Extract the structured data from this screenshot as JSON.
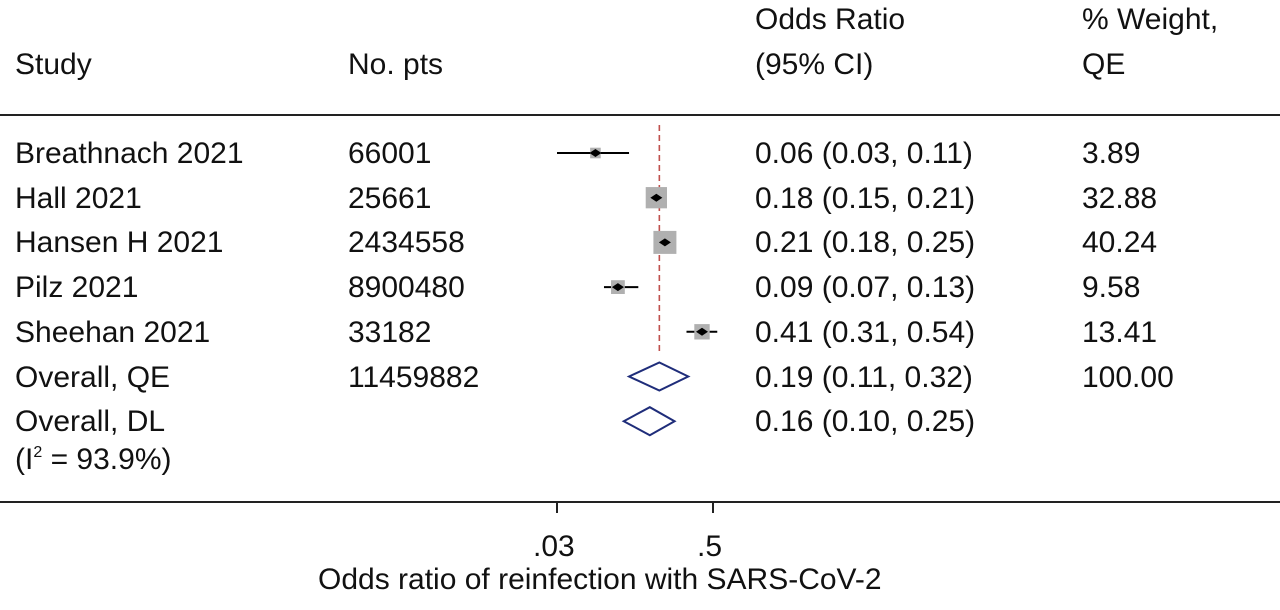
{
  "headers": {
    "study": "Study",
    "no_pts": "No. pts",
    "or_line1": "Odds Ratio",
    "or_line2": "(95% CI)",
    "weight_line1": "% Weight,",
    "weight_line2": "QE"
  },
  "footer": {
    "i2_prefix": "(I",
    "i2_sup": "2",
    "i2_suffix": " = 93.9%)"
  },
  "chart_data": {
    "type": "forest",
    "xlabel": "Odds ratio of reinfection with SARS-CoV-2",
    "x_scale": "log",
    "xlim": [
      0.03,
      0.5
    ],
    "xticks": [
      {
        "value": 0.03,
        "label": ".03"
      },
      {
        "value": 0.5,
        "label": ".5"
      }
    ],
    "reference_line": 0.19,
    "studies": [
      {
        "name": "Breathnach 2021",
        "n": "66001",
        "or": 0.06,
        "lo": 0.03,
        "hi": 0.11,
        "ci_text": "0.06 (0.03, 0.11)",
        "weight": "3.89"
      },
      {
        "name": "Hall 2021",
        "n": "25661",
        "or": 0.18,
        "lo": 0.15,
        "hi": 0.21,
        "ci_text": "0.18 (0.15, 0.21)",
        "weight": "32.88"
      },
      {
        "name": "Hansen H 2021",
        "n": "2434558",
        "or": 0.21,
        "lo": 0.18,
        "hi": 0.25,
        "ci_text": "0.21 (0.18, 0.25)",
        "weight": "40.24"
      },
      {
        "name": "Pilz 2021",
        "n": "8900480",
        "or": 0.09,
        "lo": 0.07,
        "hi": 0.13,
        "ci_text": "0.09 (0.07, 0.13)",
        "weight": "9.58"
      },
      {
        "name": "Sheehan 2021",
        "n": "33182",
        "or": 0.41,
        "lo": 0.31,
        "hi": 0.54,
        "ci_text": "0.41 (0.31, 0.54)",
        "weight": "13.41"
      }
    ],
    "overall": [
      {
        "name": "Overall, QE",
        "n": "11459882",
        "or": 0.19,
        "lo": 0.11,
        "hi": 0.32,
        "ci_text": "0.19 (0.11, 0.32)",
        "weight": "100.00"
      },
      {
        "name": "Overall, DL",
        "n": "",
        "or": 0.16,
        "lo": 0.1,
        "hi": 0.25,
        "ci_text": "0.16 (0.10, 0.25)",
        "weight": ""
      }
    ]
  },
  "colors": {
    "diamond": "#1f2d7a",
    "refline": "#c0504d",
    "box": "#b0b0b0",
    "line": "#000000"
  }
}
